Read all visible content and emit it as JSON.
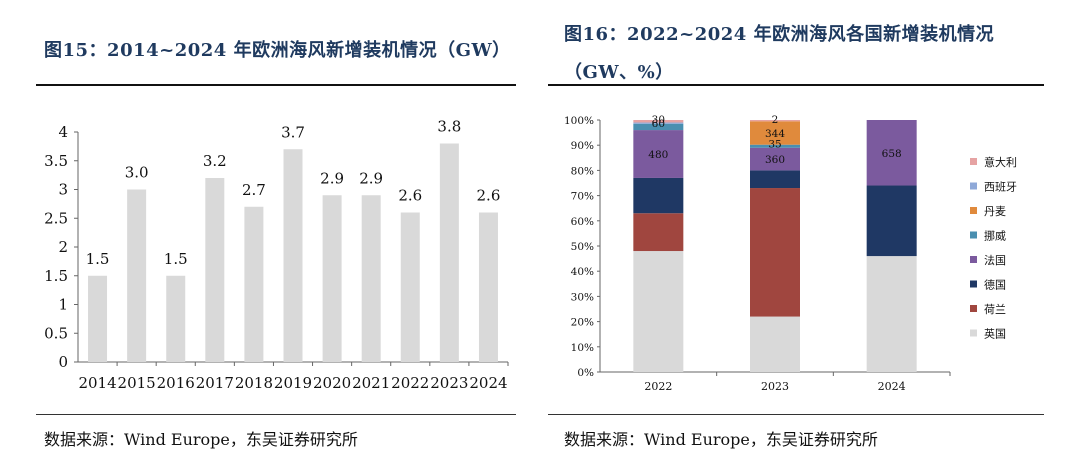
{
  "left": {
    "title": "图15：2014~2024 年欧洲海风新增装机情况（GW）",
    "source": "数据来源：Wind Europe，东吴证券研究所",
    "chart_data": {
      "type": "bar",
      "title": "2014~2024 年欧洲海风新增装机情况（GW）",
      "categories": [
        "2014",
        "2015",
        "2016",
        "2017",
        "2018",
        "2019",
        "2020",
        "2021",
        "2022",
        "2023",
        "2024"
      ],
      "values": [
        1.5,
        3.0,
        1.5,
        3.2,
        2.7,
        3.7,
        2.9,
        2.9,
        2.6,
        3.8,
        2.6
      ],
      "labels": [
        "1.5",
        "3.0",
        "1.5",
        "3.2",
        "2.7",
        "3.7",
        "2.9",
        "2.9",
        "2.6",
        "3.8",
        "2.6"
      ],
      "ylim": [
        0,
        4
      ],
      "yticks": [
        "0",
        "0.5",
        "1",
        "1.5",
        "2",
        "2.5",
        "3",
        "3.5",
        "4"
      ],
      "bar_color": "#d9d9d9",
      "xlabel": "",
      "ylabel": ""
    }
  },
  "right": {
    "title": "图16：2022~2024 年欧洲海风各国新增装机情况（GW、%）",
    "source": "数据来源：Wind Europe，东吴证券研究所",
    "chart_data": {
      "type": "bar",
      "stacked": true,
      "percent": true,
      "categories": [
        "2022",
        "2023",
        "2024"
      ],
      "yticks": [
        "0%",
        "10%",
        "20%",
        "30%",
        "40%",
        "50%",
        "60%",
        "70%",
        "80%",
        "90%",
        "100%"
      ],
      "series": [
        {
          "name": "英国",
          "color": "#d9d9d9",
          "values": [
            48,
            22,
            46
          ]
        },
        {
          "name": "荷兰",
          "color": "#a0463f",
          "values": [
            15,
            51,
            0
          ]
        },
        {
          "name": "德国",
          "color": "#1f3864",
          "values": [
            14,
            7,
            28
          ]
        },
        {
          "name": "法国",
          "color": "#7b5a9e",
          "values": [
            19,
            9,
            26
          ]
        },
        {
          "name": "挪威",
          "color": "#4a8fb0",
          "values": [
            2.5,
            1.2,
            0
          ]
        },
        {
          "name": "丹麦",
          "color": "#e08a3c",
          "values": [
            0,
            9.3,
            0
          ]
        },
        {
          "name": "西班牙",
          "color": "#8fa9d8",
          "values": [
            0.5,
            0,
            0
          ]
        },
        {
          "name": "意大利",
          "color": "#e6a3a3",
          "values": [
            1,
            0.5,
            0
          ]
        }
      ],
      "data_labels": [
        {
          "category": "2022",
          "series": "意大利",
          "text": "30"
        },
        {
          "category": "2022",
          "series": "挪威",
          "text": "60"
        },
        {
          "category": "2022",
          "series": "法国",
          "text": "480"
        },
        {
          "category": "2023",
          "series": "意大利",
          "text": "2"
        },
        {
          "category": "2023",
          "series": "丹麦",
          "text": "344"
        },
        {
          "category": "2023",
          "series": "挪威",
          "text": "35"
        },
        {
          "category": "2023",
          "series": "法国",
          "text": "360"
        },
        {
          "category": "2024",
          "series": "法国",
          "text": "658"
        }
      ],
      "legend_order": [
        "意大利",
        "西班牙",
        "丹麦",
        "挪威",
        "法国",
        "德国",
        "荷兰",
        "英国"
      ],
      "legend_position": "right"
    }
  }
}
